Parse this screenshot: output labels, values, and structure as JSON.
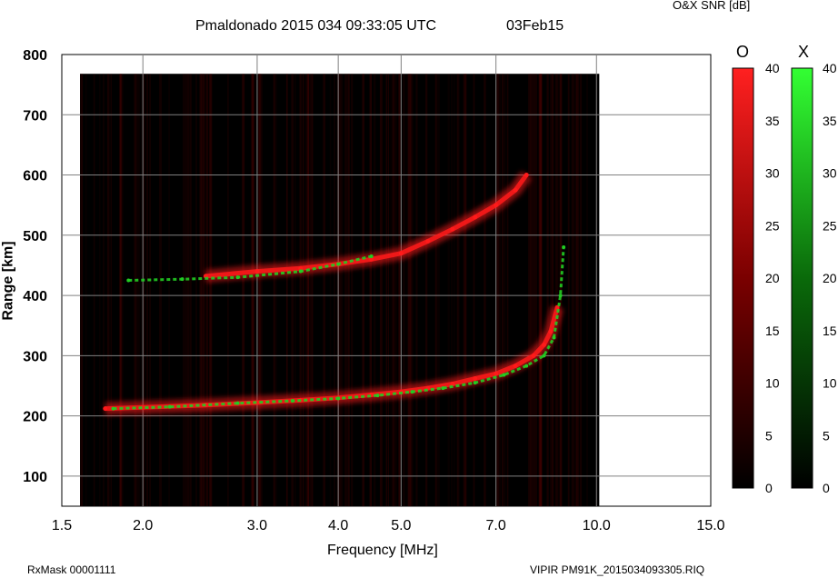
{
  "header": {
    "station_title": "Pmaldonado 2015 034 09:33:05 UTC",
    "date_label": "03Feb15",
    "snr_label": "O&X SNR [dB]"
  },
  "footer": {
    "rx_mask": "RxMask 00001111",
    "file_label": "VIPIR  PM91K_2015034093305.RIQ"
  },
  "colors": {
    "o_trace": "#ff1a1a",
    "x_trace": "#22cc22",
    "background": "#000000"
  },
  "chart_data": {
    "type": "heatmap",
    "title": "Pmaldonado 2015 034 09:33:05 UTC",
    "xlabel": "Frequency [MHz]",
    "ylabel": "Range [km]",
    "x_scale": "log",
    "xlim": [
      1.5,
      15.0
    ],
    "ylim": [
      50,
      800
    ],
    "x_ticks": [
      1.5,
      2.0,
      3.0,
      4.0,
      5.0,
      7.0,
      10.0,
      15.0
    ],
    "x_tick_labels": [
      "1.5",
      "2.0",
      "3.0",
      "4.0",
      "5.0",
      "7.0",
      "10.0",
      "15.0"
    ],
    "y_ticks": [
      100,
      200,
      300,
      400,
      500,
      600,
      700,
      800
    ],
    "y_tick_labels": [
      "100",
      "200",
      "300",
      "400",
      "500",
      "600",
      "700",
      "800"
    ],
    "data_freq_range_mhz": [
      1.6,
      10.1
    ],
    "data_range_km_max": 768,
    "colorbars": [
      {
        "name": "O",
        "label": "O",
        "range_db": [
          0,
          40
        ],
        "ticks": [
          0,
          5,
          10,
          15,
          20,
          25,
          30,
          35,
          40
        ],
        "color": "#ff1a1a"
      },
      {
        "name": "X",
        "label": "X",
        "range_db": [
          0,
          40
        ],
        "ticks": [
          0,
          5,
          10,
          15,
          20,
          25,
          30,
          35,
          40
        ],
        "color": "#22ff22"
      }
    ],
    "series": [
      {
        "name": "O-mode F-layer trace",
        "mode": "O",
        "snr_db": 38,
        "freq_mhz": [
          1.75,
          2.0,
          2.5,
          3.0,
          3.5,
          4.0,
          4.5,
          5.0,
          5.5,
          6.0,
          6.5,
          7.0,
          7.5,
          8.0,
          8.3,
          8.5,
          8.7
        ],
        "range_km": [
          212,
          214,
          218,
          222,
          226,
          230,
          235,
          240,
          246,
          253,
          262,
          270,
          283,
          300,
          318,
          340,
          380
        ]
      },
      {
        "name": "X-mode F-layer trace",
        "mode": "X",
        "snr_db": 30,
        "freq_mhz": [
          1.8,
          2.2,
          2.8,
          3.4,
          4.0,
          4.6,
          5.2,
          5.8,
          6.5,
          7.2,
          7.8,
          8.3,
          8.6,
          8.8,
          8.9
        ],
        "range_km": [
          212,
          215,
          221,
          225,
          229,
          234,
          240,
          246,
          255,
          268,
          283,
          300,
          330,
          400,
          480
        ]
      },
      {
        "name": "O-mode multiple-hop trace",
        "mode": "O",
        "snr_db": 30,
        "freq_mhz": [
          2.5,
          3.0,
          3.5,
          4.0,
          4.5,
          5.0,
          5.5,
          6.0,
          6.5,
          7.0,
          7.5,
          7.8
        ],
        "range_km": [
          432,
          440,
          445,
          452,
          460,
          470,
          490,
          510,
          530,
          550,
          575,
          600
        ]
      },
      {
        "name": "X-mode multiple-hop trace",
        "mode": "X",
        "snr_db": 25,
        "freq_mhz": [
          1.9,
          2.3,
          2.8,
          3.5,
          4.0,
          4.5
        ],
        "range_km": [
          425,
          427,
          430,
          440,
          452,
          465
        ]
      }
    ]
  }
}
